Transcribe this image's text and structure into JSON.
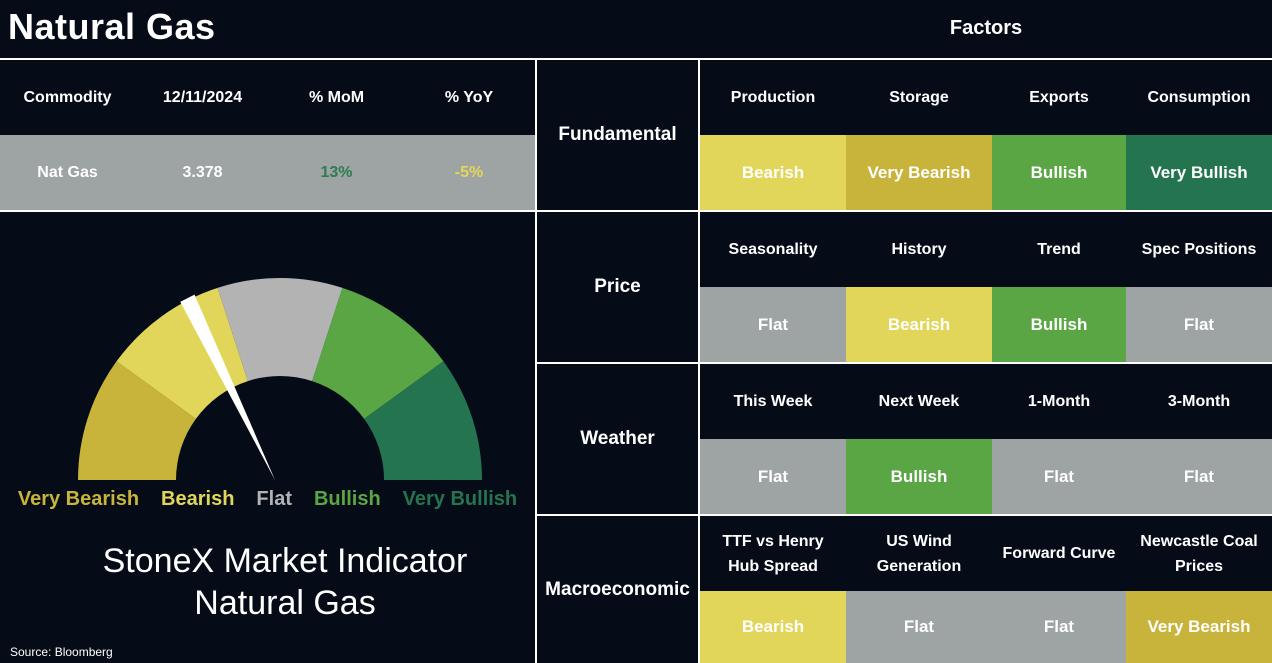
{
  "header": {
    "title": "Natural Gas",
    "factors_title": "Factors"
  },
  "commodity_table": {
    "headers": [
      "Commodity",
      "12/11/2024",
      "% MoM",
      "% YoY"
    ],
    "row": {
      "commodity": "Nat Gas",
      "value": "3.378",
      "mom": "13%",
      "yoy": "-5%"
    }
  },
  "gauge": {
    "legend": [
      "Very Bearish",
      "Bearish",
      "Flat",
      "Bullish",
      "Very Bullish"
    ],
    "legend_colors": [
      "#c8b43a",
      "#e2d65a",
      "#b3b3b3",
      "#5aa644",
      "#24744f"
    ],
    "needle_position": 0.35,
    "indicator_title": "StoneX Market Indicator",
    "indicator_subtitle": "Natural Gas",
    "source": "Source: Bloomberg"
  },
  "rating_colors": {
    "Very Bearish": "#c8b43a",
    "Bearish": "#e2d65a",
    "Flat": "#9ea4a4",
    "Bullish": "#5aa644",
    "Very Bullish": "#24744f"
  },
  "categories": [
    {
      "name": "Fundamental",
      "factors": [
        {
          "label": "Production",
          "rating": "Bearish"
        },
        {
          "label": "Storage",
          "rating": "Very Bearish"
        },
        {
          "label": "Exports",
          "rating": "Bullish"
        },
        {
          "label": "Consumption",
          "rating": "Very Bullish"
        }
      ]
    },
    {
      "name": "Price",
      "factors": [
        {
          "label": "Seasonality",
          "rating": "Flat"
        },
        {
          "label": "History",
          "rating": "Bearish"
        },
        {
          "label": "Trend",
          "rating": "Bullish"
        },
        {
          "label": "Spec Positions",
          "rating": "Flat"
        }
      ]
    },
    {
      "name": "Weather",
      "factors": [
        {
          "label": "This Week",
          "rating": "Flat"
        },
        {
          "label": "Next Week",
          "rating": "Bullish"
        },
        {
          "label": "1-Month",
          "rating": "Flat"
        },
        {
          "label": "3-Month",
          "rating": "Flat"
        }
      ]
    },
    {
      "name": "Macroeconomic",
      "factors": [
        {
          "label": "TTF vs Henry Hub Spread",
          "rating": "Bearish"
        },
        {
          "label": "US Wind Generation",
          "rating": "Flat"
        },
        {
          "label": "Forward Curve",
          "rating": "Flat"
        },
        {
          "label": "Newcastle Coal Prices",
          "rating": "Very Bearish"
        }
      ]
    }
  ]
}
